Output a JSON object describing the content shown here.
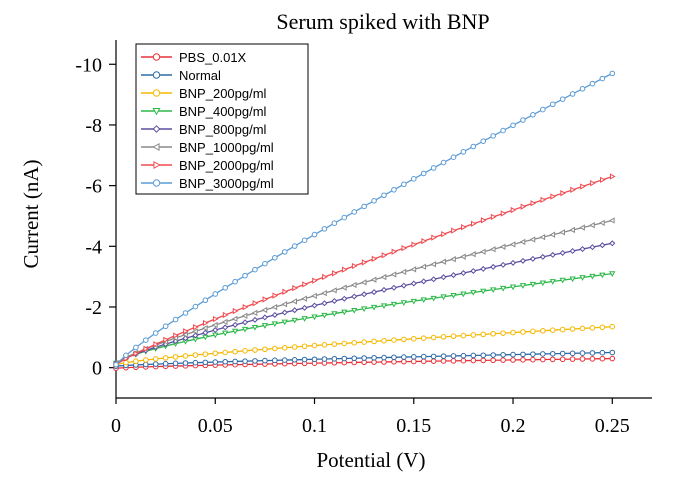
{
  "chart_data": {
    "type": "line",
    "title": "Serum spiked with BNP",
    "xlabel": "Potential (V)",
    "ylabel": "Current (nA)",
    "xlim": [
      0,
      0.27
    ],
    "ylim": [
      1,
      -10.8
    ],
    "x_ticks": [
      0,
      0.05,
      0.1,
      0.15,
      0.2,
      0.25
    ],
    "x_tick_labels": [
      "0",
      "0.05",
      "0.1",
      "0.15",
      "0.2",
      "0.25"
    ],
    "y_ticks": [
      0,
      -2,
      -4,
      -6,
      -8,
      -10
    ],
    "y_tick_labels": [
      "0",
      "-2",
      "-4",
      "-6",
      "-8",
      "-10"
    ],
    "grid": false,
    "legend_position": "top-left",
    "x_start": 0,
    "x_end": 0.25,
    "point_count": 51,
    "series": [
      {
        "name": "PBS_0.01X",
        "color": "#e8333a",
        "marker": "circle",
        "start": 0.02,
        "end": -0.3,
        "shape": 0.7
      },
      {
        "name": "Normal",
        "color": "#2e6aa6",
        "marker": "circle",
        "start": -0.05,
        "end": -0.5,
        "shape": 0.75
      },
      {
        "name": "BNP_200pg/ml",
        "color": "#f5b800",
        "marker": "circle",
        "start": -0.1,
        "end": -1.35,
        "shape": 0.75
      },
      {
        "name": "BNP_400pg/ml",
        "color": "#2eb84a",
        "marker": "triangle-down",
        "start": -0.15,
        "end": -3.1,
        "shape": 0.72
      },
      {
        "name": "BNP_800pg/ml",
        "color": "#5a4fa0",
        "marker": "diamond",
        "start": -0.15,
        "end": -4.1,
        "shape": 0.8
      },
      {
        "name": "BNP_1000pg/ml",
        "color": "#8a8a8a",
        "marker": "triangle-left",
        "start": -0.15,
        "end": -4.85,
        "shape": 0.82
      },
      {
        "name": "BNP_2000pg/ml",
        "color": "#f04b50",
        "marker": "triangle-right",
        "start": -0.1,
        "end": -6.3,
        "shape": 0.88
      },
      {
        "name": "BNP_3000pg/ml",
        "color": "#5b9bd5",
        "marker": "circle",
        "start": -0.1,
        "end": -9.7,
        "shape": 0.88
      }
    ]
  }
}
